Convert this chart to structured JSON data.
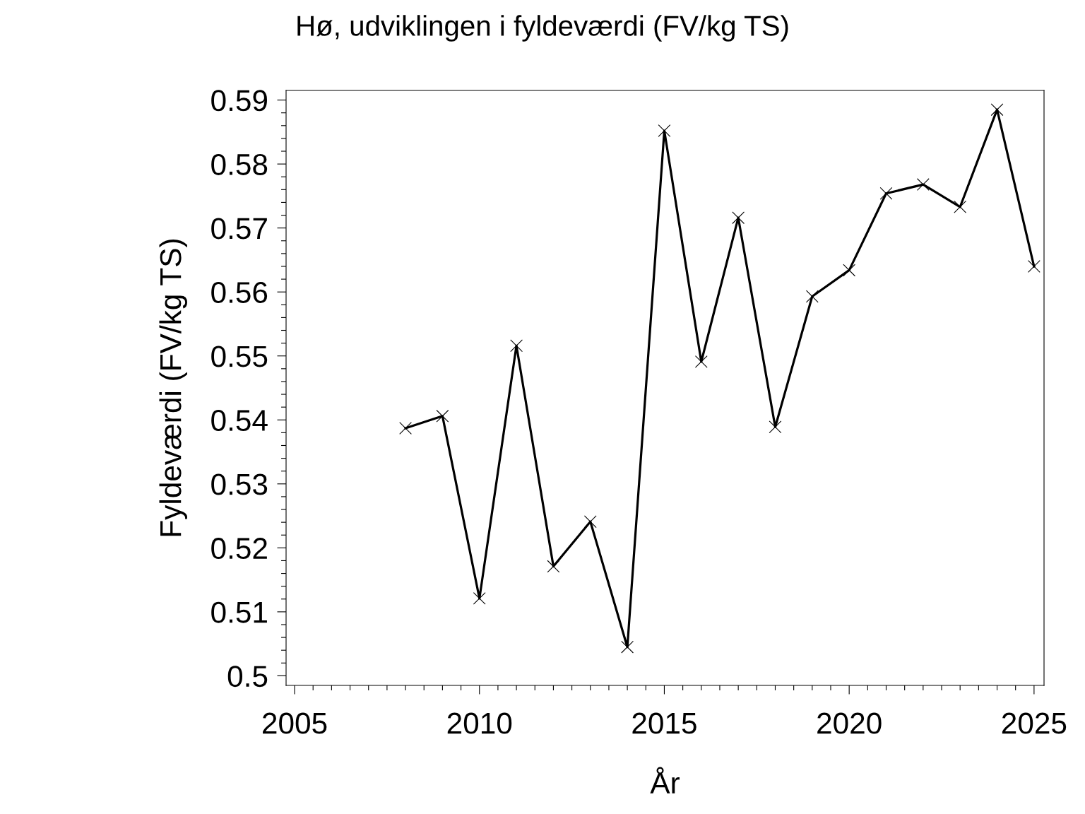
{
  "chart_data": {
    "type": "line",
    "title": "Hø, udviklingen i fyldeværdi (FV/kg TS)",
    "xlabel": "År",
    "ylabel": "Fyldeværdi (FV/kg TS)",
    "x": [
      2008,
      2009,
      2010,
      2011,
      2012,
      2013,
      2014,
      2015,
      2016,
      2017,
      2018,
      2019,
      2020,
      2021,
      2022,
      2023,
      2024,
      2025
    ],
    "series": [
      {
        "color": "#000000",
        "values": [
          0.5387,
          0.5406,
          0.5121,
          0.5516,
          0.5171,
          0.5241,
          0.5045,
          0.5852,
          0.5491,
          0.5716,
          0.5389,
          0.5593,
          0.5634,
          0.5754,
          0.5768,
          0.5733,
          0.5885,
          0.564
        ]
      }
    ],
    "xlim": [
      2004.77,
      2025.27
    ],
    "ylim": [
      0.4985,
      0.5915
    ],
    "xticks": [
      2005,
      {
        "value": 2005.5,
        "label": null
      },
      {
        "value": 2006,
        "label": null
      },
      {
        "value": 2006.5,
        "label": null
      },
      {
        "value": 2007,
        "label": null
      },
      {
        "value": 2007.5,
        "label": null
      },
      {
        "value": 2008,
        "label": null
      },
      {
        "value": 2008.5,
        "label": null
      },
      {
        "value": 2009,
        "label": null
      },
      {
        "value": 2009.5,
        "label": null
      },
      2010,
      {
        "value": 2010.5,
        "label": null
      },
      {
        "value": 2011,
        "label": null
      },
      {
        "value": 2011.5,
        "label": null
      },
      {
        "value": 2012,
        "label": null
      },
      {
        "value": 2012.5,
        "label": null
      },
      {
        "value": 2013,
        "label": null
      },
      {
        "value": 2013.5,
        "label": null
      },
      {
        "value": 2014,
        "label": null
      },
      {
        "value": 2014.5,
        "label": null
      },
      2015,
      {
        "value": 2015.5,
        "label": null
      },
      {
        "value": 2016,
        "label": null
      },
      {
        "value": 2016.5,
        "label": null
      },
      {
        "value": 2017,
        "label": null
      },
      {
        "value": 2017.5,
        "label": null
      },
      {
        "value": 2018,
        "label": null
      },
      {
        "value": 2018.5,
        "label": null
      },
      {
        "value": 2019,
        "label": null
      },
      {
        "value": 2019.5,
        "label": null
      },
      2020,
      {
        "value": 2020.5,
        "label": null
      },
      {
        "value": 2021,
        "label": null
      },
      {
        "value": 2021.5,
        "label": null
      },
      {
        "value": 2022,
        "label": null
      },
      {
        "value": 2022.5,
        "label": null
      },
      {
        "value": 2023,
        "label": null
      },
      {
        "value": 2023.5,
        "label": null
      },
      {
        "value": 2024,
        "label": null
      },
      {
        "value": 2024.5,
        "label": null
      },
      2025
    ],
    "yticks": [
      0.5,
      {
        "value": 0.502,
        "label": null
      },
      {
        "value": 0.504,
        "label": null
      },
      {
        "value": 0.506,
        "label": null
      },
      {
        "value": 0.508,
        "label": null
      },
      0.51,
      {
        "value": 0.512,
        "label": null
      },
      {
        "value": 0.514,
        "label": null
      },
      {
        "value": 0.516,
        "label": null
      },
      {
        "value": 0.518,
        "label": null
      },
      0.52,
      {
        "value": 0.522,
        "label": null
      },
      {
        "value": 0.524,
        "label": null
      },
      {
        "value": 0.526,
        "label": null
      },
      {
        "value": 0.528,
        "label": null
      },
      0.53,
      {
        "value": 0.532,
        "label": null
      },
      {
        "value": 0.534,
        "label": null
      },
      {
        "value": 0.536,
        "label": null
      },
      {
        "value": 0.538,
        "label": null
      },
      0.54,
      {
        "value": 0.542,
        "label": null
      },
      {
        "value": 0.544,
        "label": null
      },
      {
        "value": 0.546,
        "label": null
      },
      {
        "value": 0.548,
        "label": null
      },
      0.55,
      {
        "value": 0.552,
        "label": null
      },
      {
        "value": 0.554,
        "label": null
      },
      {
        "value": 0.556,
        "label": null
      },
      {
        "value": 0.558,
        "label": null
      },
      0.56,
      {
        "value": 0.562,
        "label": null
      },
      {
        "value": 0.564,
        "label": null
      },
      {
        "value": 0.566,
        "label": null
      },
      {
        "value": 0.568,
        "label": null
      },
      0.57,
      {
        "value": 0.572,
        "label": null
      },
      {
        "value": 0.574,
        "label": null
      },
      {
        "value": 0.576,
        "label": null
      },
      {
        "value": 0.578,
        "label": null
      },
      0.58,
      {
        "value": 0.582,
        "label": null
      },
      {
        "value": 0.584,
        "label": null
      },
      {
        "value": 0.586,
        "label": null
      },
      {
        "value": 0.588,
        "label": null
      },
      0.59
    ],
    "marker": "cross",
    "line_style": "solid",
    "grid": false
  }
}
